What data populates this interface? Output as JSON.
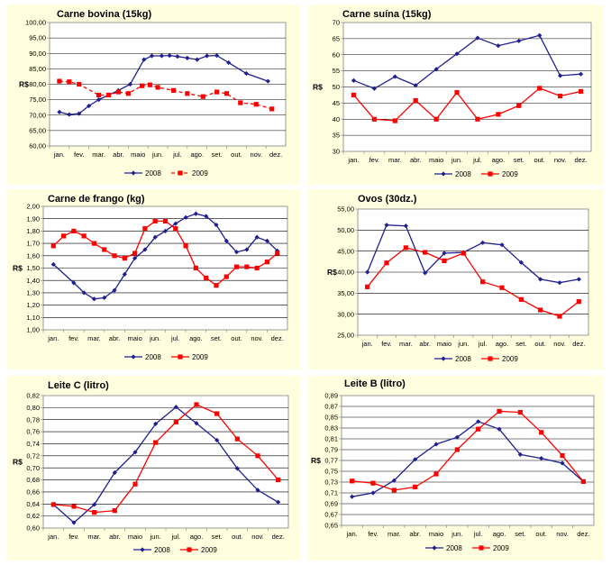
{
  "colors": {
    "panel_bg": "#ffffe0",
    "plot_bg": "#ffffff",
    "series_2008": "#1f1f8f",
    "series_2009": "#ff0000"
  },
  "months": [
    "jan.",
    "fev.",
    "mar.",
    "abr.",
    "maio",
    "jun.",
    "jul.",
    "ago.",
    "set.",
    "out.",
    "nov.",
    "dez."
  ],
  "chart_data": [
    {
      "type": "line",
      "title": "Carne bovina (15kg)",
      "ylabel": "R$",
      "ylim": [
        60,
        100
      ],
      "yticks": [
        "60,00",
        "65,00",
        "70,00",
        "75,00",
        "80,00",
        "85,00",
        "90,00",
        "95,00",
        "100,00"
      ],
      "grid": true,
      "legend": "bottom",
      "series": [
        {
          "name": "2008",
          "marker": "diamond",
          "style": "solid",
          "values": [
            71,
            70.2,
            70.5,
            73,
            75,
            76.5,
            78,
            80,
            88,
            89.2,
            89.2,
            89.3,
            89,
            88.5,
            88,
            89.2,
            89.3,
            87,
            83.5,
            81
          ]
        },
        {
          "name": "2009",
          "marker": "square",
          "style": "dashed",
          "values": [
            81,
            80.8,
            80,
            76.5,
            76.5,
            77.5,
            77,
            79.5,
            79.8,
            79,
            78,
            77,
            76,
            77.5,
            77,
            74,
            73.5,
            72
          ]
        }
      ],
      "x_positions_note": "",
      "x_2008": [
        0,
        0.5,
        1,
        1.5,
        2,
        2.5,
        3,
        3.6,
        4.3,
        4.7,
        5.2,
        5.6,
        6,
        6.5,
        7,
        7.5,
        8,
        8.6,
        9.5,
        10.6
      ],
      "x_2009": [
        0,
        0.5,
        1,
        2,
        2.5,
        3,
        3.5,
        4.2,
        4.6,
        5,
        5.8,
        6.5,
        7.3,
        8,
        8.5,
        9.2,
        10,
        10.8
      ]
    },
    {
      "type": "line",
      "title": "Carne suína (15kg)",
      "ylabel": "R$",
      "ylim": [
        30,
        70
      ],
      "yticks": [
        "30",
        "35",
        "40",
        "45",
        "50",
        "55",
        "60",
        "65",
        "70"
      ],
      "grid": true,
      "legend": "bottom",
      "series": [
        {
          "name": "2008",
          "marker": "diamond",
          "style": "solid",
          "values": [
            52,
            49.5,
            53.2,
            50.5,
            55.5,
            60.3,
            65.2,
            62.8,
            64.3,
            66,
            53.5,
            54
          ]
        },
        {
          "name": "2009",
          "marker": "square",
          "style": "solid",
          "values": [
            47.5,
            40,
            39.5,
            45.8,
            40,
            48.3,
            40,
            41.5,
            44.2,
            49.6,
            47.2,
            48.6
          ]
        }
      ]
    },
    {
      "type": "line",
      "title": "Carne de frango (kg)",
      "ylabel": "R$",
      "ylim": [
        1.0,
        2.0
      ],
      "yticks": [
        "1,00",
        "1,10",
        "1,20",
        "1,30",
        "1,40",
        "1,50",
        "1,60",
        "1,70",
        "1,80",
        "1,90",
        "2,00"
      ],
      "grid": true,
      "legend": "bottom",
      "series": [
        {
          "name": "2008",
          "marker": "diamond",
          "style": "solid",
          "x": [
            0,
            1,
            1.5,
            2,
            2.5,
            3,
            3.5,
            4,
            4.5,
            5,
            5.5,
            6,
            6.5,
            7,
            7.5,
            8,
            8.5,
            9,
            9.5,
            10,
            10.5,
            11
          ],
          "values": [
            1.53,
            1.38,
            1.3,
            1.25,
            1.26,
            1.32,
            1.45,
            1.58,
            1.65,
            1.75,
            1.8,
            1.86,
            1.91,
            1.94,
            1.92,
            1.85,
            1.72,
            1.63,
            1.65,
            1.75,
            1.72,
            1.64
          ]
        },
        {
          "name": "2009",
          "marker": "square",
          "style": "solid",
          "x": [
            0,
            0.5,
            1,
            1.5,
            2,
            2.5,
            3,
            3.5,
            4,
            4.5,
            5,
            5.5,
            6,
            6.5,
            7,
            7.5,
            8,
            8.5,
            9,
            9.5,
            10,
            10.5,
            11
          ],
          "values": [
            1.68,
            1.76,
            1.8,
            1.76,
            1.7,
            1.65,
            1.6,
            1.58,
            1.62,
            1.82,
            1.88,
            1.88,
            1.82,
            1.68,
            1.5,
            1.42,
            1.36,
            1.43,
            1.51,
            1.51,
            1.5,
            1.55,
            1.62
          ]
        }
      ]
    },
    {
      "type": "line",
      "title": "Ovos (30dz.)",
      "ylabel": "R$",
      "ylim": [
        25,
        55
      ],
      "yticks": [
        "25,00",
        "30,00",
        "35,00",
        "40,00",
        "45,00",
        "50,00",
        "55,00"
      ],
      "grid": true,
      "legend": "bottom",
      "series": [
        {
          "name": "2008",
          "marker": "diamond",
          "style": "solid",
          "values": [
            40,
            51.2,
            51,
            39.8,
            44.5,
            44.7,
            47,
            46.5,
            42.3,
            38.3,
            37.5,
            38.3
          ]
        },
        {
          "name": "2009",
          "marker": "square",
          "style": "solid",
          "values": [
            36.5,
            42.2,
            45.8,
            44.7,
            42.7,
            44.5,
            37.7,
            36.3,
            33.5,
            31,
            29.5,
            33
          ]
        }
      ]
    },
    {
      "type": "line",
      "title": "Leite C (litro)",
      "ylabel": "R$",
      "ylim": [
        0.6,
        0.82
      ],
      "yticks": [
        "0,60",
        "0,62",
        "0,64",
        "0,66",
        "0,68",
        "0,70",
        "0,72",
        "0,74",
        "0,76",
        "0,78",
        "0,80",
        "0,82"
      ],
      "grid": true,
      "legend": "bottom",
      "series": [
        {
          "name": "2008",
          "marker": "diamond",
          "style": "solid",
          "x": [
            0,
            1,
            2,
            3,
            4,
            5,
            6,
            7,
            8,
            9,
            10,
            11
          ],
          "values": [
            0.639,
            0.609,
            0.639,
            0.692,
            0.726,
            0.773,
            0.801,
            0.774,
            0.746,
            0.699,
            0.663,
            0.643
          ]
        },
        {
          "name": "2009",
          "marker": "square",
          "style": "solid",
          "x": [
            0,
            1,
            2,
            3,
            4,
            5,
            6,
            7,
            8,
            9,
            10,
            11
          ],
          "values": [
            0.639,
            0.636,
            0.626,
            0.629,
            0.673,
            0.742,
            0.776,
            0.805,
            0.79,
            0.748,
            0.72,
            0.68
          ]
        }
      ]
    },
    {
      "type": "line",
      "title": "Leite B (litro)",
      "ylabel": "R$",
      "ylim": [
        0.65,
        0.89
      ],
      "yticks": [
        "0,65",
        "0,67",
        "0,69",
        "0,71",
        "0,73",
        "0,75",
        "0,77",
        "0,79",
        "0,81",
        "0,83",
        "0,85",
        "0,87",
        "0,89"
      ],
      "grid": true,
      "legend": "bottom",
      "series": [
        {
          "name": "2008",
          "marker": "diamond",
          "style": "solid",
          "values": [
            0.703,
            0.71,
            0.733,
            0.772,
            0.8,
            0.813,
            0.842,
            0.828,
            0.781,
            0.774,
            0.765,
            0.731
          ]
        },
        {
          "name": "2009",
          "marker": "square",
          "style": "solid",
          "values": [
            0.732,
            0.728,
            0.715,
            0.721,
            0.745,
            0.79,
            0.828,
            0.861,
            0.859,
            0.822,
            0.779,
            0.731
          ]
        }
      ]
    }
  ]
}
